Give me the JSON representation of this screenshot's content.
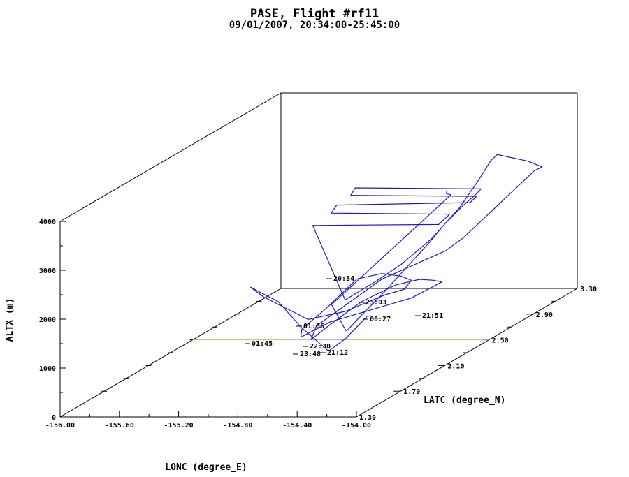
{
  "chart_data": {
    "type": "line",
    "projection": "3d",
    "title": "PASE, Flight #rf11",
    "subtitle": "09/01/2007, 20:34:00-25:45:00",
    "xlabel": "LONC (degree_E)",
    "ylabel": "LATC (degree_N)",
    "zlabel": "ALTX (m)",
    "xlim": [
      -156.0,
      -154.0
    ],
    "ylim": [
      1.3,
      3.3
    ],
    "zlim": [
      0,
      4000
    ],
    "x_ticks": [
      "-156.00",
      "-155.60",
      "-155.20",
      "-154.80",
      "-154.40",
      "-154.00"
    ],
    "y_ticks": [
      "1.30",
      "1.70",
      "2.10",
      "2.50",
      "2.90",
      "3.30"
    ],
    "z_ticks": [
      "0",
      "1000",
      "2000",
      "3000",
      "4000"
    ],
    "series_color": "#1a1acc",
    "reference_line_color": "#c8b48c",
    "time_labels": [
      "20:34",
      "23:03",
      "00:27",
      "21:51",
      "01:06",
      "01:45",
      "22:30",
      "23:48",
      "21:12"
    ],
    "track": [
      [
        -154.45,
        2.72,
        2750
      ],
      [
        -154.45,
        2.72,
        2700
      ],
      [
        -154.42,
        2.72,
        2680
      ],
      [
        -154.28,
        1.45,
        2100
      ],
      [
        -154.22,
        1.5,
        1500
      ],
      [
        -154.22,
        1.52,
        1500
      ],
      [
        -154.25,
        1.7,
        1600
      ],
      [
        -154.28,
        1.9,
        1700
      ],
      [
        -154.32,
        2.1,
        1800
      ],
      [
        -154.36,
        2.3,
        1900
      ],
      [
        -154.4,
        2.5,
        2000
      ],
      [
        -154.45,
        2.7,
        2100
      ],
      [
        -154.48,
        2.9,
        2200
      ],
      [
        -154.5,
        3.05,
        2250
      ],
      [
        -154.5,
        3.1,
        2300
      ],
      [
        -155.35,
        3.1,
        2320
      ],
      [
        -155.35,
        3.06,
        2220
      ],
      [
        -154.5,
        3.06,
        2200
      ],
      [
        -154.5,
        3.0,
        2150
      ],
      [
        -155.4,
        3.0,
        2100
      ],
      [
        -155.4,
        2.95,
        2000
      ],
      [
        -154.6,
        2.95,
        1980
      ],
      [
        -154.6,
        2.85,
        1900
      ],
      [
        -155.45,
        2.85,
        1880
      ],
      [
        -154.3,
        1.6,
        2000
      ],
      [
        -154.25,
        1.8,
        2100
      ],
      [
        -154.22,
        2.0,
        2200
      ],
      [
        -154.2,
        2.25,
        2400
      ],
      [
        -154.2,
        2.5,
        2700
      ],
      [
        -154.22,
        2.7,
        3000
      ],
      [
        -154.25,
        2.85,
        3200
      ],
      [
        -154.28,
        2.95,
        3200
      ],
      [
        -154.25,
        3.05,
        3000
      ],
      [
        -154.22,
        3.15,
        2800
      ],
      [
        -154.2,
        3.25,
        2550
      ],
      [
        -154.25,
        3.25,
        2480
      ],
      [
        -154.25,
        2.6,
        1950
      ],
      [
        -154.22,
        2.4,
        1950
      ],
      [
        -154.35,
        2.0,
        1900
      ],
      [
        -154.4,
        1.7,
        1700
      ],
      [
        -154.42,
        1.5,
        1600
      ],
      [
        -154.38,
        1.4,
        1450
      ],
      [
        -154.36,
        1.5,
        1550
      ],
      [
        -154.34,
        1.8,
        1700
      ],
      [
        -154.33,
        2.1,
        1650
      ],
      [
        -154.32,
        2.3,
        1500
      ],
      [
        -154.3,
        2.4,
        1350
      ],
      [
        -154.28,
        2.45,
        1250
      ],
      [
        -154.3,
        2.2,
        1250
      ],
      [
        -154.35,
        1.9,
        1400
      ],
      [
        -154.4,
        1.6,
        1550
      ],
      [
        -154.45,
        1.4,
        1500
      ],
      [
        -154.48,
        1.45,
        1600
      ],
      [
        -154.5,
        1.7,
        1700
      ],
      [
        -154.52,
        2.0,
        1900
      ],
      [
        -154.5,
        2.2,
        1750
      ],
      [
        -154.48,
        2.35,
        1500
      ],
      [
        -154.45,
        2.4,
        1350
      ],
      [
        -154.42,
        2.3,
        1300
      ],
      [
        -154.4,
        2.1,
        1450
      ],
      [
        -154.45,
        1.8,
        1500
      ],
      [
        -154.55,
        1.6,
        1600
      ],
      [
        -155.0,
        1.8,
        1800
      ],
      [
        -155.2,
        1.95,
        1800
      ],
      [
        -154.9,
        1.8,
        1700
      ],
      [
        -154.6,
        1.6,
        1450
      ],
      [
        -154.3,
        1.45,
        1150
      ],
      [
        -154.3,
        1.6,
        1200
      ],
      [
        -154.3,
        1.8,
        1400
      ]
    ]
  }
}
